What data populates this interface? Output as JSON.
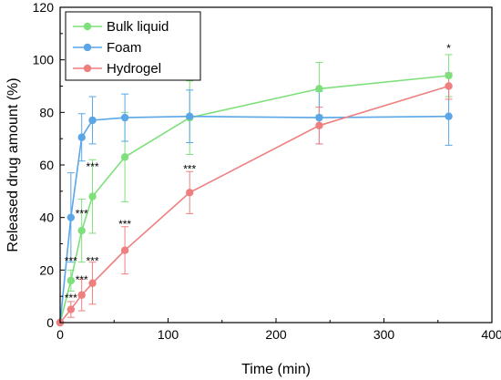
{
  "chart_data": {
    "type": "line",
    "xlabel": "Time (min)",
    "ylabel": "Released drug amount (%)",
    "xlim": [
      0,
      400
    ],
    "ylim": [
      0,
      120
    ],
    "x_ticks": [
      0,
      100,
      200,
      300,
      400
    ],
    "y_ticks": [
      0,
      20,
      40,
      60,
      80,
      100,
      120
    ],
    "grid": false,
    "legend_position": "top-left",
    "series": [
      {
        "name": "Bulk liquid",
        "color": "#7ee07a",
        "x": [
          0,
          10,
          20,
          30,
          60,
          120,
          240,
          360
        ],
        "y": [
          0,
          16,
          35,
          48,
          63,
          78,
          89,
          94
        ],
        "err": [
          0,
          4,
          12,
          14,
          17,
          14,
          10,
          8
        ]
      },
      {
        "name": "Foam",
        "color": "#5aa6e6",
        "x": [
          0,
          10,
          20,
          30,
          60,
          120,
          240,
          360
        ],
        "y": [
          0,
          40,
          70.5,
          77,
          78,
          78.5,
          78,
          78.5
        ],
        "err": [
          0,
          17,
          9,
          9,
          9,
          10,
          10,
          11
        ]
      },
      {
        "name": "Hydrogel",
        "color": "#ef7f7f",
        "x": [
          0,
          10,
          20,
          30,
          60,
          120,
          240,
          360
        ],
        "y": [
          0,
          5,
          10.5,
          15,
          27.5,
          49.5,
          75,
          90
        ],
        "err": [
          0,
          3,
          6,
          8,
          9,
          8,
          7,
          5
        ]
      }
    ],
    "annotations": [
      {
        "text": "***",
        "x": 10,
        "y": 22
      },
      {
        "text": "***",
        "x": 10,
        "y": 8
      },
      {
        "text": "***",
        "x": 20,
        "y": 40
      },
      {
        "text": "***",
        "x": 20,
        "y": 15
      },
      {
        "text": "***",
        "x": 30,
        "y": 58
      },
      {
        "text": "***",
        "x": 30,
        "y": 22
      },
      {
        "text": "***",
        "x": 60,
        "y": 36
      },
      {
        "text": "***",
        "x": 120,
        "y": 57
      },
      {
        "text": "*",
        "x": 360,
        "y": 103
      }
    ]
  }
}
